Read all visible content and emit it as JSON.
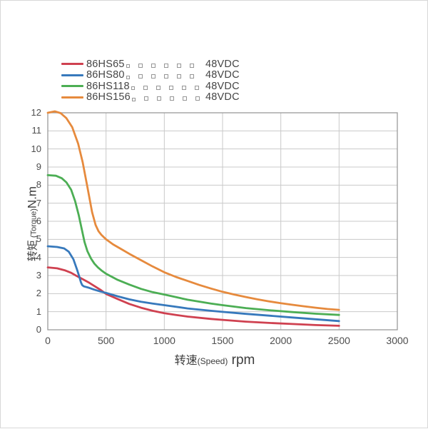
{
  "legend": {
    "items": [
      {
        "name": "86HS65",
        "voltage": "48VDC",
        "color": "#cf4150",
        "missing_glyph_count": 6
      },
      {
        "name": "86HS80",
        "voltage": "48VDC",
        "color": "#3779bc",
        "missing_glyph_count": 6
      },
      {
        "name": "86HS118",
        "voltage": "48VDC",
        "color": "#4cae54",
        "missing_glyph_count": 6
      },
      {
        "name": "86HS156",
        "voltage": "48VDC",
        "color": "#e68a3d",
        "missing_glyph_count": 6
      }
    ]
  },
  "axes": {
    "y_title": {
      "cn": "转矩",
      "en": " (Torque)",
      "unit": "N.m"
    },
    "x_title": {
      "cn": "转速",
      "en": "(Speed)",
      "unit": " rpm"
    }
  },
  "colors": {
    "grid": "#c9c9c9",
    "border": "#9a9a9a",
    "tick_text": "#4d4d4d"
  },
  "chart_data": {
    "type": "line",
    "title": "",
    "xlabel": "转速(Speed) rpm",
    "ylabel": "转矩 (Torque)N.m",
    "xlim": [
      0,
      3000
    ],
    "ylim": [
      0,
      12
    ],
    "x_ticks": [
      0,
      500,
      1000,
      1500,
      2000,
      2500,
      3000
    ],
    "y_ticks": [
      0,
      1,
      2,
      3,
      4,
      5,
      6,
      7,
      8,
      9,
      10,
      11,
      12
    ],
    "grid": true,
    "legend_position": "top-left",
    "x_unit": "rpm",
    "y_unit": "N.m",
    "series": [
      {
        "name": "86HS65 48VDC",
        "color": "#cf4150",
        "points": [
          [
            0,
            3.45
          ],
          [
            80,
            3.4
          ],
          [
            150,
            3.28
          ],
          [
            200,
            3.15
          ],
          [
            250,
            2.97
          ],
          [
            300,
            2.8
          ],
          [
            350,
            2.62
          ],
          [
            400,
            2.42
          ],
          [
            450,
            2.22
          ],
          [
            500,
            1.98
          ],
          [
            550,
            1.84
          ],
          [
            600,
            1.7
          ],
          [
            700,
            1.43
          ],
          [
            800,
            1.22
          ],
          [
            900,
            1.05
          ],
          [
            1000,
            0.92
          ],
          [
            1100,
            0.82
          ],
          [
            1200,
            0.73
          ],
          [
            1400,
            0.6
          ],
          [
            1500,
            0.55
          ],
          [
            1700,
            0.45
          ],
          [
            1900,
            0.38
          ],
          [
            2100,
            0.32
          ],
          [
            2300,
            0.26
          ],
          [
            2500,
            0.22
          ]
        ]
      },
      {
        "name": "86HS80 48VDC",
        "color": "#3779bc",
        "points": [
          [
            0,
            4.62
          ],
          [
            80,
            4.58
          ],
          [
            140,
            4.5
          ],
          [
            180,
            4.32
          ],
          [
            220,
            3.9
          ],
          [
            250,
            3.35
          ],
          [
            270,
            2.95
          ],
          [
            285,
            2.62
          ],
          [
            295,
            2.47
          ],
          [
            310,
            2.4
          ],
          [
            350,
            2.33
          ],
          [
            400,
            2.22
          ],
          [
            450,
            2.12
          ],
          [
            500,
            2.04
          ],
          [
            600,
            1.85
          ],
          [
            700,
            1.68
          ],
          [
            800,
            1.55
          ],
          [
            900,
            1.45
          ],
          [
            1000,
            1.36
          ],
          [
            1200,
            1.18
          ],
          [
            1400,
            1.05
          ],
          [
            1500,
            0.99
          ],
          [
            1700,
            0.88
          ],
          [
            1900,
            0.78
          ],
          [
            2100,
            0.68
          ],
          [
            2300,
            0.58
          ],
          [
            2500,
            0.48
          ]
        ]
      },
      {
        "name": "86HS118 48VDC",
        "color": "#4cae54",
        "points": [
          [
            0,
            8.55
          ],
          [
            70,
            8.52
          ],
          [
            120,
            8.38
          ],
          [
            160,
            8.15
          ],
          [
            200,
            7.75
          ],
          [
            235,
            7.1
          ],
          [
            265,
            6.35
          ],
          [
            290,
            5.6
          ],
          [
            315,
            4.85
          ],
          [
            340,
            4.35
          ],
          [
            370,
            3.95
          ],
          [
            400,
            3.66
          ],
          [
            430,
            3.45
          ],
          [
            465,
            3.26
          ],
          [
            500,
            3.1
          ],
          [
            600,
            2.76
          ],
          [
            700,
            2.5
          ],
          [
            800,
            2.26
          ],
          [
            900,
            2.08
          ],
          [
            1000,
            1.95
          ],
          [
            1200,
            1.66
          ],
          [
            1400,
            1.45
          ],
          [
            1500,
            1.36
          ],
          [
            1700,
            1.2
          ],
          [
            1900,
            1.08
          ],
          [
            2100,
            0.98
          ],
          [
            2300,
            0.89
          ],
          [
            2500,
            0.82
          ]
        ]
      },
      {
        "name": "86HS156 48VDC",
        "color": "#e68a3d",
        "points": [
          [
            0,
            12.0
          ],
          [
            60,
            12.08
          ],
          [
            110,
            11.98
          ],
          [
            160,
            11.7
          ],
          [
            210,
            11.2
          ],
          [
            260,
            10.3
          ],
          [
            300,
            9.25
          ],
          [
            340,
            7.9
          ],
          [
            380,
            6.5
          ],
          [
            410,
            5.8
          ],
          [
            435,
            5.45
          ],
          [
            460,
            5.25
          ],
          [
            500,
            5.0
          ],
          [
            560,
            4.72
          ],
          [
            620,
            4.5
          ],
          [
            700,
            4.2
          ],
          [
            800,
            3.85
          ],
          [
            900,
            3.5
          ],
          [
            1000,
            3.18
          ],
          [
            1100,
            2.92
          ],
          [
            1200,
            2.7
          ],
          [
            1300,
            2.48
          ],
          [
            1400,
            2.28
          ],
          [
            1500,
            2.1
          ],
          [
            1600,
            1.95
          ],
          [
            1700,
            1.81
          ],
          [
            1800,
            1.68
          ],
          [
            1900,
            1.57
          ],
          [
            2000,
            1.47
          ],
          [
            2100,
            1.38
          ],
          [
            2200,
            1.3
          ],
          [
            2300,
            1.22
          ],
          [
            2400,
            1.15
          ],
          [
            2500,
            1.1
          ]
        ]
      }
    ]
  }
}
